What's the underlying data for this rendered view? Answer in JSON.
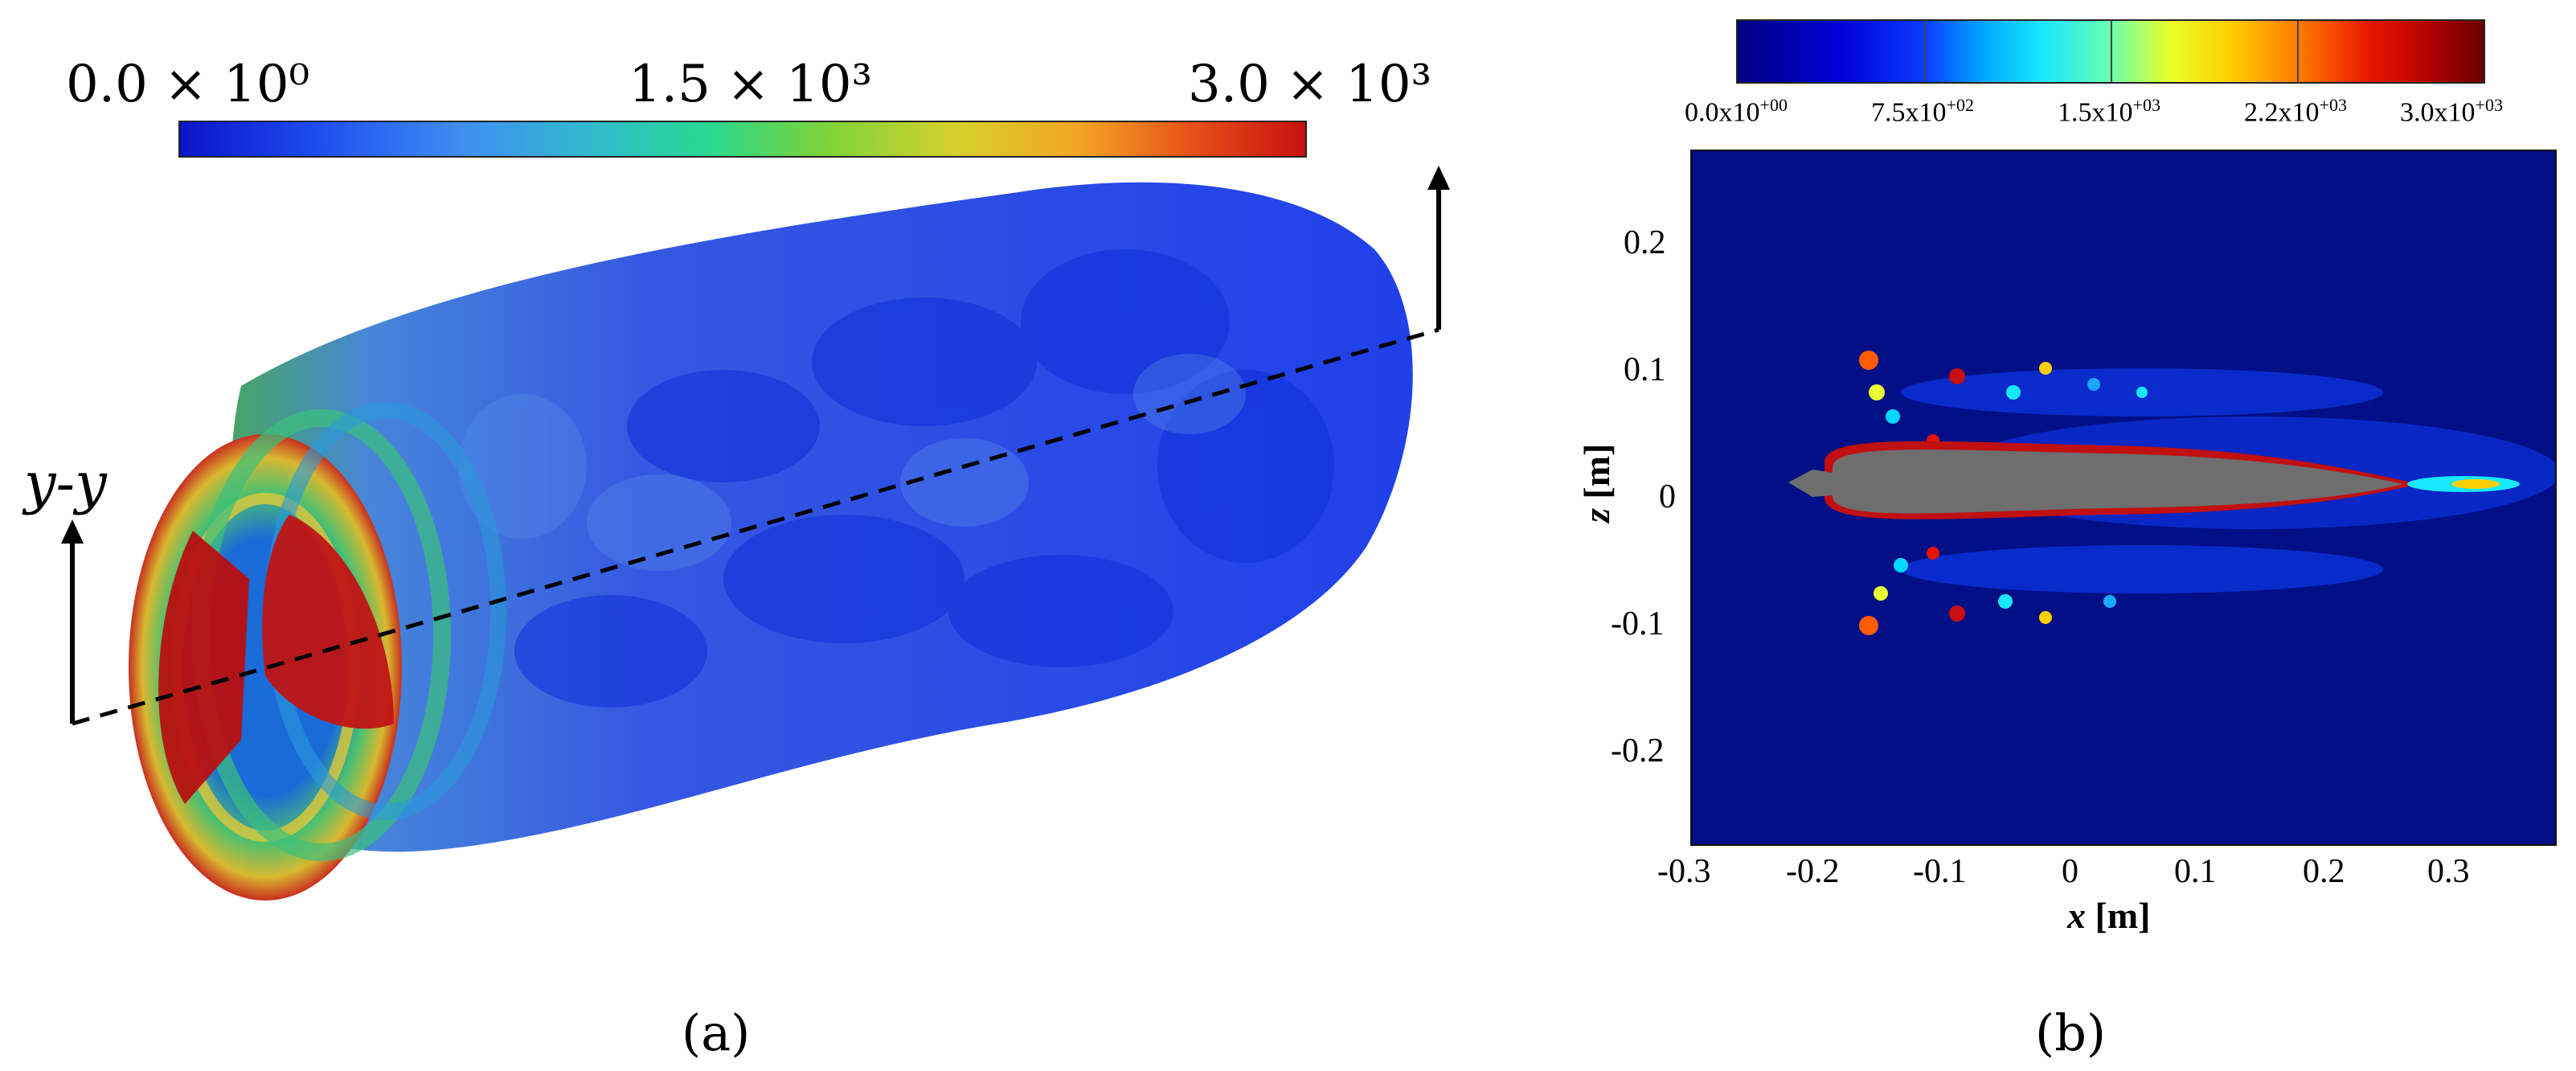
{
  "panel_a": {
    "colorbar": {
      "min_label": "0.0 × 10⁰",
      "mid_label": "1.5 × 10³",
      "max_label": "3.0 × 10³"
    },
    "plane_label": "y-y",
    "caption": "(a)"
  },
  "panel_b": {
    "colorbar": {
      "labels": [
        {
          "base": "0.0x10",
          "exp": "+00"
        },
        {
          "base": "7.5x10",
          "exp": "+02"
        },
        {
          "base": "1.5x10",
          "exp": "+03"
        },
        {
          "base": "2.2x10",
          "exp": "+03"
        },
        {
          "base": "3.0x10",
          "exp": "+03"
        }
      ]
    },
    "xlabel": {
      "var": "x",
      "unit": " [m]"
    },
    "ylabel": {
      "var": "z",
      "unit": " [m]"
    },
    "x_ticks": [
      "-0.3",
      "-0.2",
      "-0.1",
      "0",
      "0.1",
      "0.2",
      "0.3"
    ],
    "y_ticks": [
      "0.2",
      "0.1",
      "0",
      "-0.1",
      "-0.2"
    ],
    "caption": "(b)"
  },
  "colors": {
    "field_background": "#000f86",
    "body": "#6e6e6e",
    "high": "#c81010",
    "low": "#0a14c8"
  }
}
